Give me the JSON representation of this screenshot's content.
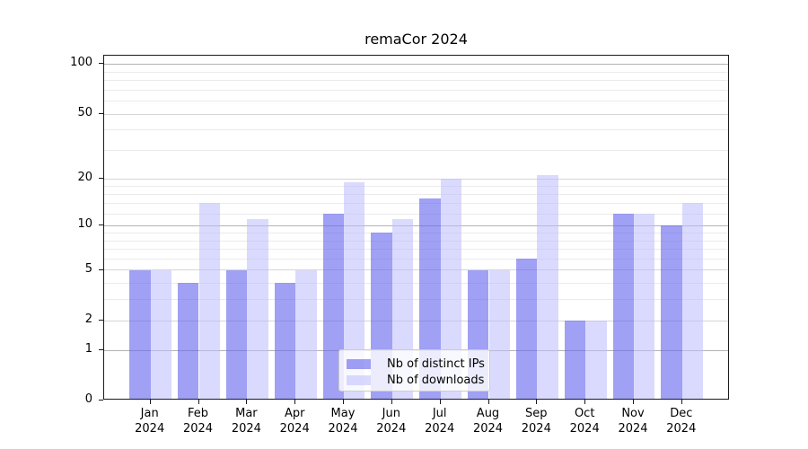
{
  "chart_data": {
    "type": "bar",
    "title": "remaCor 2024",
    "categories": [
      "Jan",
      "Feb",
      "Mar",
      "Apr",
      "May",
      "Jun",
      "Jul",
      "Aug",
      "Sep",
      "Oct",
      "Nov",
      "Dec"
    ],
    "x_tick_year": "2024",
    "series": [
      {
        "name": "Nb of distinct IPs",
        "color": "rgba(102,102,238,0.62)",
        "values": [
          5,
          4,
          5,
          4,
          12,
          9,
          15,
          5,
          6,
          2,
          12,
          10
        ]
      },
      {
        "name": "Nb of downloads",
        "color": "rgba(187,187,255,0.55)",
        "values": [
          5,
          14,
          11,
          5,
          19,
          11,
          20,
          5,
          21,
          2,
          12,
          14
        ]
      }
    ],
    "y_axis": {
      "scale": "log1p",
      "ticks": [
        0,
        1,
        2,
        5,
        10,
        20,
        50,
        100
      ],
      "range": [
        0,
        100
      ]
    },
    "x_axis": {
      "label": "",
      "tick_style": "month-over-year"
    },
    "gridlines": {
      "decade": {
        "values": [
          1,
          10,
          100
        ],
        "color": "#b3b3b3"
      },
      "mid": {
        "values": [
          2,
          5,
          20,
          50
        ],
        "color": "#d6d6d6"
      },
      "minor": {
        "values": [
          3,
          4,
          6,
          7,
          8,
          9,
          12,
          14,
          16,
          18,
          30,
          40,
          60,
          70,
          80,
          90
        ],
        "color": "#ebebeb"
      }
    },
    "legend": {
      "position": "lower center",
      "border_color": "#cccccc"
    },
    "grid": true,
    "ylabel": "",
    "xlabel": ""
  },
  "axes": {
    "spine_color": "#1a1a1a",
    "tick_label_color": "#000000"
  }
}
